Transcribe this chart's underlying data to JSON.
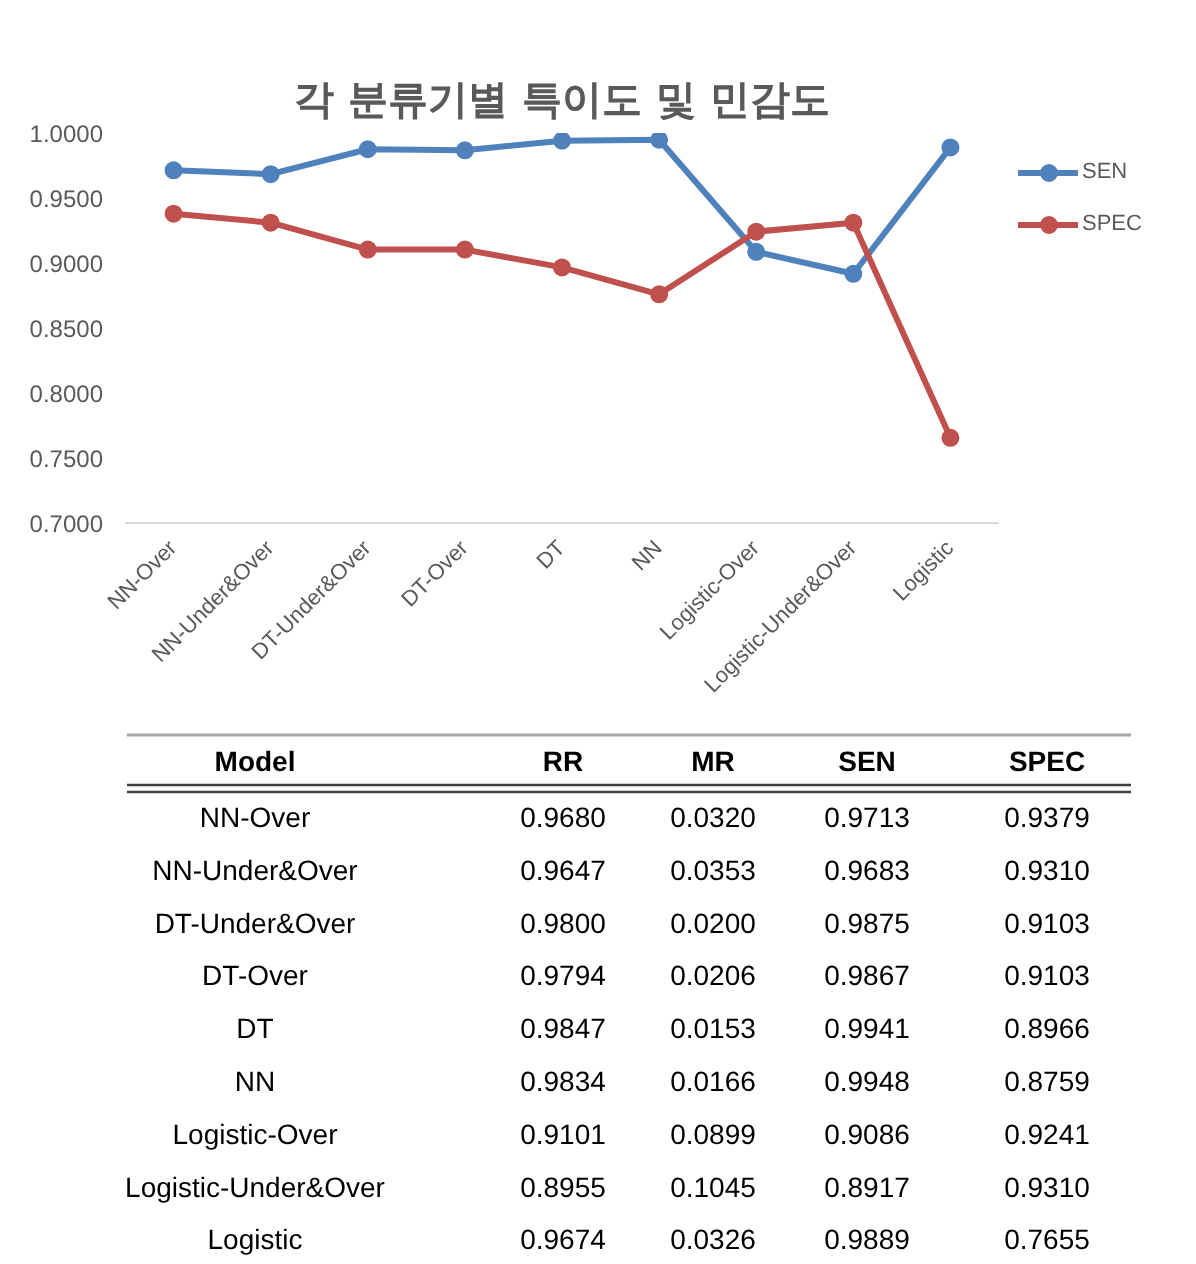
{
  "chart_data": [
    {
      "type": "line",
      "title": "각 분류기별 특이도 및 민감도",
      "categories": [
        "NN-Over",
        "NN-Under&Over",
        "DT-Under&Over",
        "DT-Over",
        "DT",
        "NN",
        "Logistic-Over",
        "Logistic-Under&Over",
        "Logistic"
      ],
      "series": [
        {
          "name": "SEN",
          "color": "#4f81bd",
          "values": [
            0.9713,
            0.9683,
            0.9875,
            0.9867,
            0.9941,
            0.9948,
            0.9086,
            0.8917,
            0.9889
          ]
        },
        {
          "name": "SPEC",
          "color": "#c0504d",
          "values": [
            0.9379,
            0.931,
            0.9103,
            0.9103,
            0.8966,
            0.8759,
            0.9241,
            0.931,
            0.7655
          ]
        }
      ],
      "ylim": [
        0.7,
        1.0
      ],
      "yticks": [
        {
          "value": 0.7,
          "label": "0.7000"
        },
        {
          "value": 0.75,
          "label": "0.7500"
        },
        {
          "value": 0.8,
          "label": "0.8000"
        },
        {
          "value": 0.85,
          "label": "0.8500"
        },
        {
          "value": 0.9,
          "label": "0.9000"
        },
        {
          "value": 0.95,
          "label": "0.9500"
        },
        {
          "value": 1.0,
          "label": "1.0000"
        }
      ],
      "legend": "right",
      "marker": "circle",
      "line_style": "solid"
    },
    {
      "type": "other",
      "xlabel": "Model",
      "categories": [
        "NN-Over",
        "NN-Under&Over",
        "DT-Under&Over",
        "DT-Over",
        "DT",
        "NN",
        "Logistic-Over",
        "Logistic-Under&Over",
        "Logistic"
      ],
      "series": [
        {
          "name": "RR",
          "values": [
            0.968,
            0.9647,
            0.98,
            0.9794,
            0.9847,
            0.9834,
            0.9101,
            0.8955,
            0.9674
          ],
          "value_labels": [
            "0.9680",
            "0.9647",
            "0.9800",
            "0.9794",
            "0.9847",
            "0.9834",
            "0.9101",
            "0.8955",
            "0.9674"
          ]
        },
        {
          "name": "MR",
          "values": [
            0.032,
            0.0353,
            0.02,
            0.0206,
            0.0153,
            0.0166,
            0.0899,
            0.1045,
            0.0326
          ],
          "value_labels": [
            "0.0320",
            "0.0353",
            "0.0200",
            "0.0206",
            "0.0153",
            "0.0166",
            "0.0899",
            "0.1045",
            "0.0326"
          ]
        },
        {
          "name": "SEN",
          "values": [
            0.9713,
            0.9683,
            0.9875,
            0.9867,
            0.9941,
            0.9948,
            0.9086,
            0.8917,
            0.9889
          ],
          "value_labels": [
            "0.9713",
            "0.9683",
            "0.9875",
            "0.9867",
            "0.9941",
            "0.9948",
            "0.9086",
            "0.8917",
            "0.9889"
          ]
        },
        {
          "name": "SPEC",
          "values": [
            0.9379,
            0.931,
            0.9103,
            0.9103,
            0.8966,
            0.8759,
            0.9241,
            0.931,
            0.7655
          ],
          "value_labels": [
            "0.9379",
            "0.9310",
            "0.9103",
            "0.9103",
            "0.8966",
            "0.8759",
            "0.9241",
            "0.9310",
            "0.7655"
          ]
        }
      ]
    }
  ]
}
